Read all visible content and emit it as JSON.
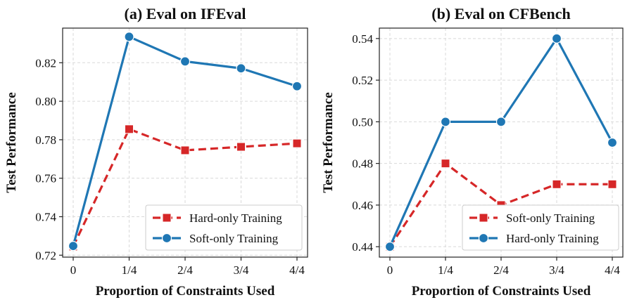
{
  "chart_data": [
    {
      "type": "line",
      "title": "(a) Eval on IFEval",
      "xlabel": "Proportion of Constraints Used",
      "ylabel": "Test Performance",
      "categories": [
        "0",
        "1/4",
        "2/4",
        "3/4",
        "4/4"
      ],
      "ylim": [
        0.719,
        0.838
      ],
      "yticks": [
        0.72,
        0.74,
        0.76,
        0.78,
        0.8,
        0.82
      ],
      "ytick_labels": [
        "0.72",
        "0.74",
        "0.76",
        "0.78",
        "0.80",
        "0.82"
      ],
      "grid": true,
      "legend_position": "bottom-right",
      "series": [
        {
          "name": "Hard-only Training",
          "values": [
            0.7245,
            0.7855,
            0.7745,
            0.7763,
            0.7781
          ],
          "color": "#d62728",
          "dash": "dashed",
          "marker": "square"
        },
        {
          "name": "Soft-only Training",
          "values": [
            0.7248,
            0.8335,
            0.8207,
            0.8171,
            0.8078
          ],
          "color": "#1f77b4",
          "dash": "solid",
          "marker": "circle"
        }
      ]
    },
    {
      "type": "line",
      "title": "(b) Eval on CFBench",
      "xlabel": "Proportion of Constraints Used",
      "ylabel": "Test Performance",
      "categories": [
        "0",
        "1/4",
        "2/4",
        "3/4",
        "4/4"
      ],
      "ylim": [
        0.435,
        0.545
      ],
      "yticks": [
        0.44,
        0.46,
        0.48,
        0.5,
        0.52,
        0.54
      ],
      "ytick_labels": [
        "0.44",
        "0.46",
        "0.48",
        "0.50",
        "0.52",
        "0.54"
      ],
      "grid": true,
      "legend_position": "bottom-right",
      "series": [
        {
          "name": "Soft-only Training",
          "values": [
            0.44,
            0.48,
            0.46,
            0.47,
            0.47
          ],
          "color": "#d62728",
          "dash": "dashed",
          "marker": "square"
        },
        {
          "name": "Hard-only Training",
          "values": [
            0.44,
            0.5,
            0.5,
            0.54,
            0.49
          ],
          "color": "#1f77b4",
          "dash": "solid",
          "marker": "circle"
        }
      ]
    }
  ]
}
